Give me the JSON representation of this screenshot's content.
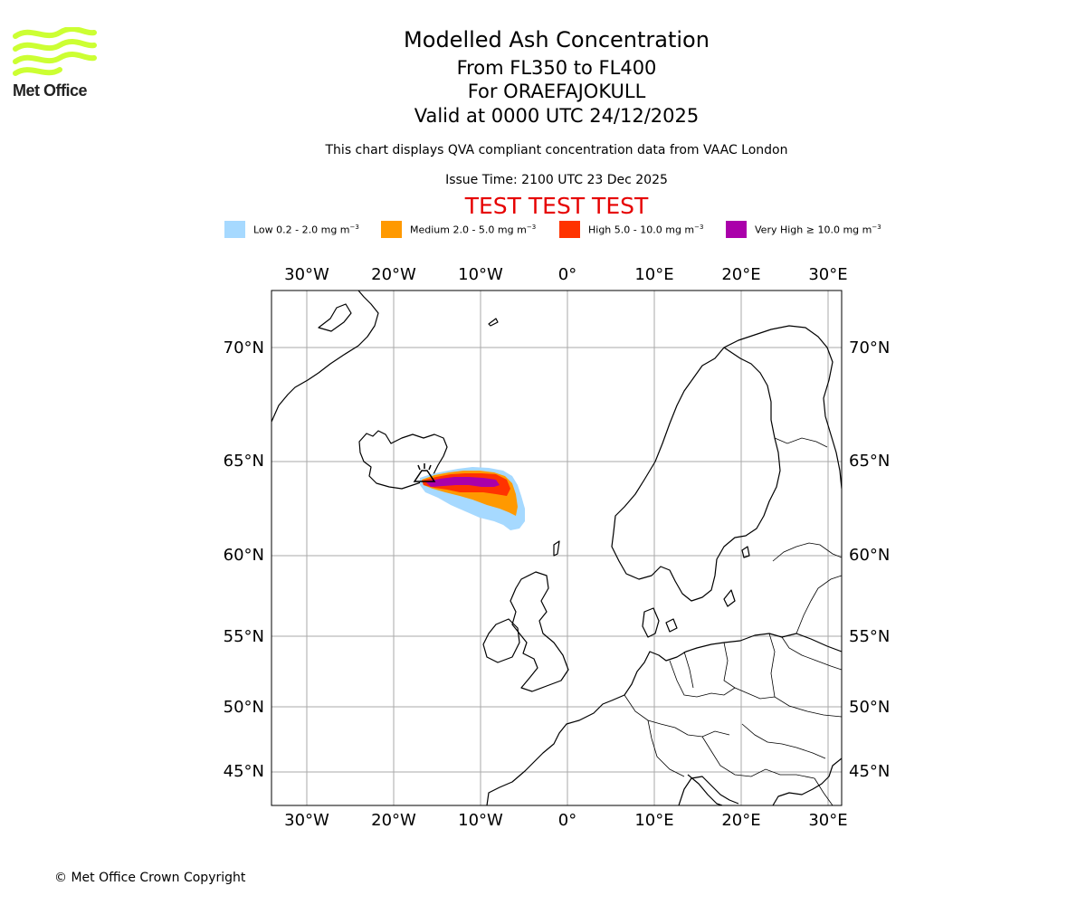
{
  "logo": {
    "brand": "Met Office",
    "icon": "met-office-wave-logo",
    "color": "#ccff33"
  },
  "header": {
    "title": "Modelled Ash Concentration",
    "levels": "From FL350 to FL400",
    "volcano": "For ORAEFAJOKULL",
    "valid": "Valid at 0000 UTC 24/12/2025",
    "note": "This chart displays QVA compliant concentration data from VAAC London",
    "issue": "Issue Time: 2100 UTC 23 Dec 2025",
    "test_banner": "TEST TEST TEST"
  },
  "legend": [
    {
      "label": "Low 0.2 - 2.0 mg m",
      "exp": "−3",
      "color": "#a6d9ff"
    },
    {
      "label": "Medium 2.0 - 5.0 mg m",
      "exp": "−3",
      "color": "#ff9900"
    },
    {
      "label": "High 5.0 - 10.0 mg m",
      "exp": "−3",
      "color": "#ff3300"
    },
    {
      "label": "Very High  ≥  10.0 mg m",
      "exp": "−3",
      "color": "#aa00aa"
    }
  ],
  "map": {
    "lon_range": [
      -34,
      32
    ],
    "lon_ticks": [
      "30°W",
      "20°W",
      "10°W",
      "0°",
      "10°E",
      "20°E",
      "30°E"
    ],
    "lat_ticks": [
      "70°N",
      "65°N",
      "60°N",
      "55°N",
      "50°N",
      "45°N"
    ],
    "volcano_marker": "volcano-icon",
    "gridline_color": "#aaaaaa"
  },
  "footer": {
    "copyright": "© Met Office Crown Copyright"
  }
}
